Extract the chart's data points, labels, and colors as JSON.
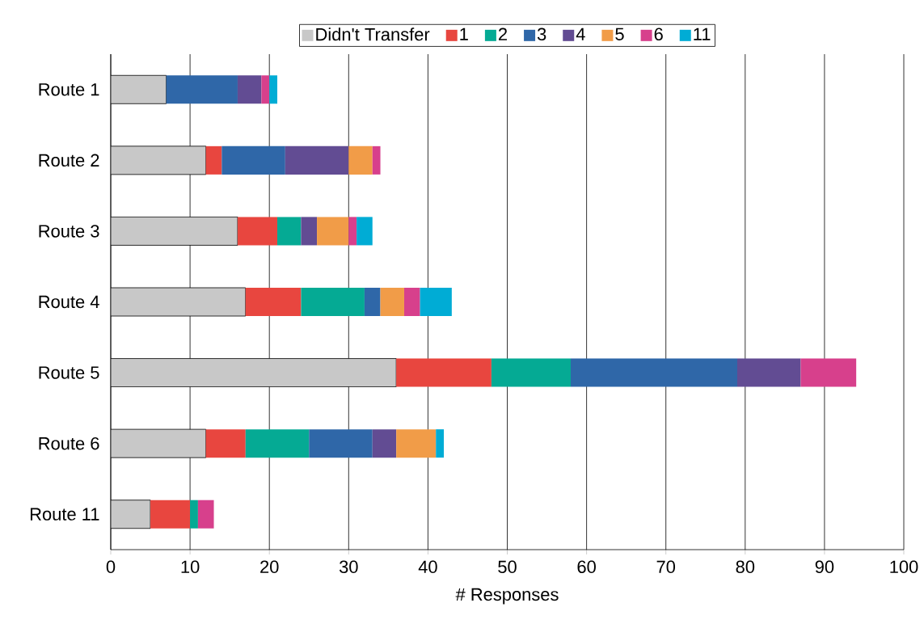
{
  "chart_data": {
    "type": "bar",
    "orientation": "horizontal",
    "stacked": true,
    "xlabel": "# Responses",
    "categories": [
      "Route 1",
      "Route 2",
      "Route 3",
      "Route 4",
      "Route 5",
      "Route 6",
      "Route 11"
    ],
    "series": [
      {
        "name": "Didn't Transfer",
        "color": "#c8c8c8",
        "values": [
          7,
          12,
          16,
          17,
          36,
          12,
          5
        ]
      },
      {
        "name": "1",
        "color": "#e8463f",
        "values": [
          0,
          2,
          5,
          7,
          12,
          5,
          5
        ]
      },
      {
        "name": "2",
        "color": "#05aa94",
        "values": [
          0,
          0,
          3,
          8,
          10,
          8,
          1
        ]
      },
      {
        "name": "3",
        "color": "#2f67a8",
        "values": [
          9,
          8,
          0,
          2,
          21,
          8,
          0
        ]
      },
      {
        "name": "4",
        "color": "#624c93",
        "values": [
          3,
          8,
          2,
          0,
          8,
          3,
          0
        ]
      },
      {
        "name": "5",
        "color": "#f19c48",
        "values": [
          0,
          3,
          4,
          3,
          0,
          5,
          0
        ]
      },
      {
        "name": "6",
        "color": "#d7408c",
        "values": [
          1,
          1,
          1,
          2,
          7,
          0,
          2
        ]
      },
      {
        "name": "11",
        "color": "#00acd5",
        "values": [
          1,
          0,
          2,
          4,
          0,
          1,
          0
        ]
      }
    ],
    "xlim": [
      0,
      100
    ],
    "xticks": [
      0,
      10,
      20,
      30,
      40,
      50,
      60,
      70,
      80,
      90,
      100
    ],
    "grid": "x",
    "legend": "top"
  }
}
